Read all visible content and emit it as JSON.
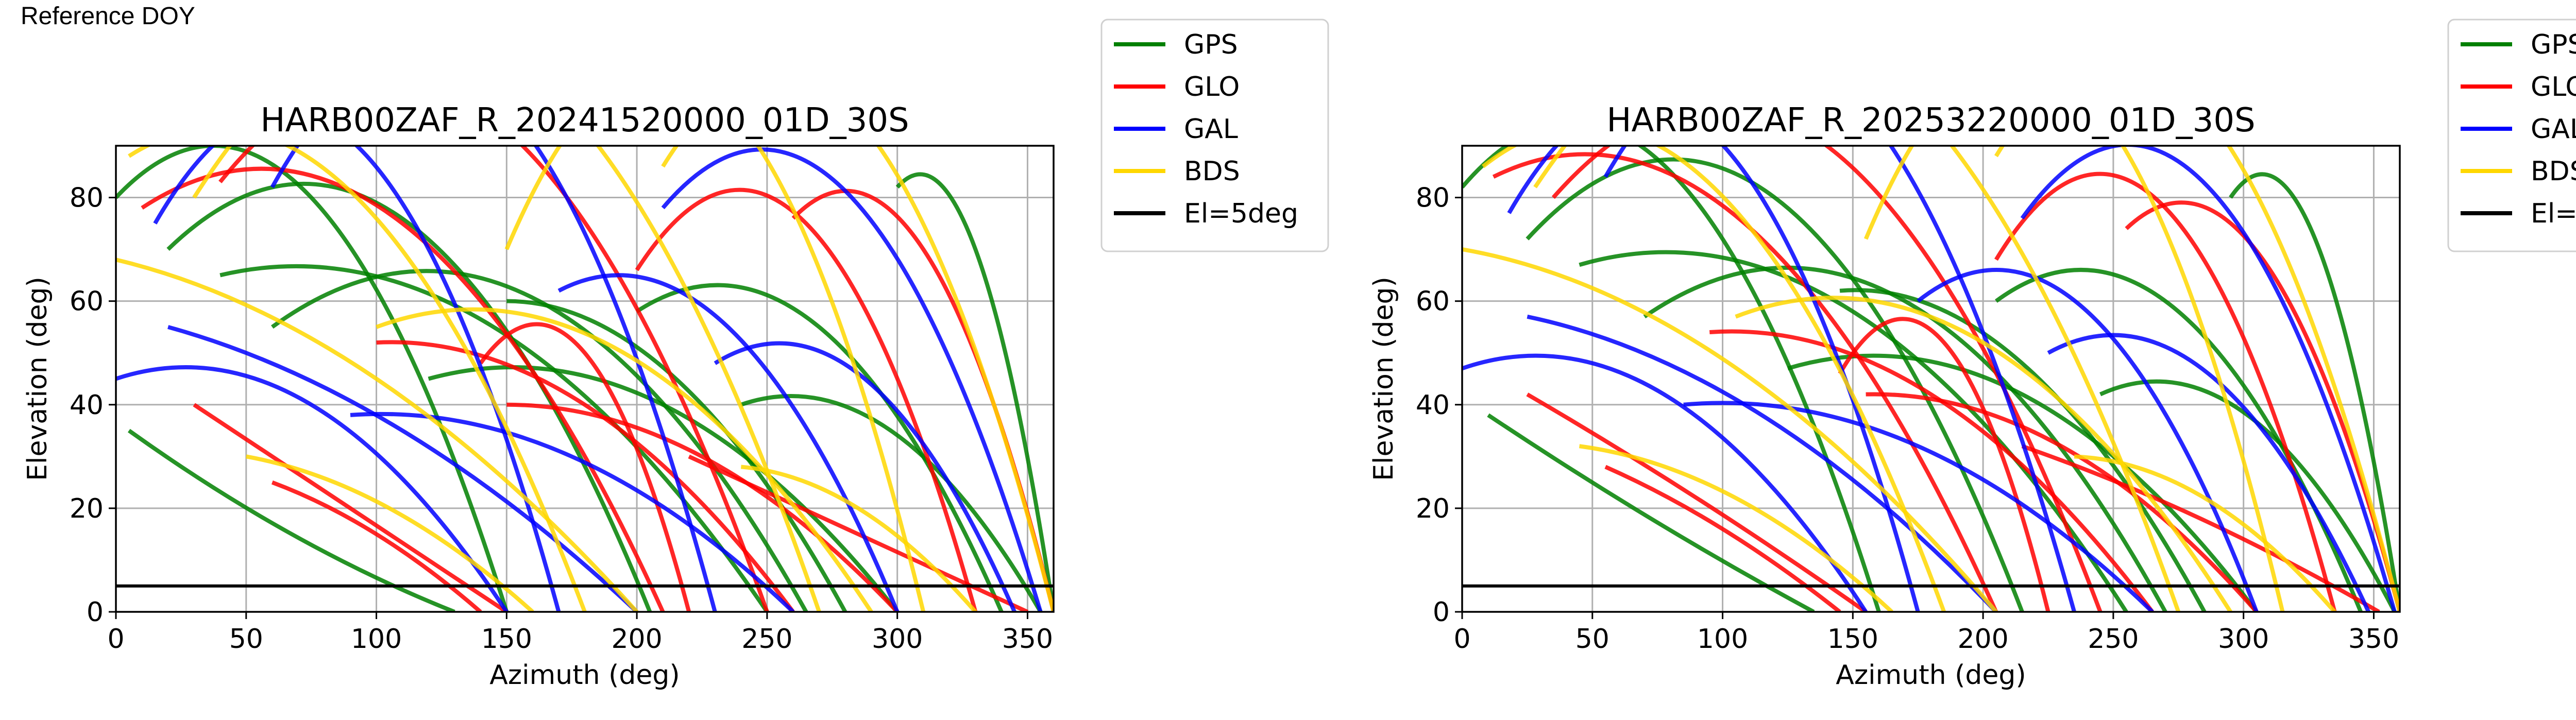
{
  "header": {
    "label": "Reference DOY"
  },
  "colors": {
    "GPS": "#008000",
    "GLO": "#ff0000",
    "GAL": "#0000ff",
    "BDS": "#ffd700",
    "El=5deg": "#000000"
  },
  "chart_data": [
    {
      "type": "line",
      "title": "HARB00ZAF_R_20241520000_01D_30S",
      "xlabel": "Azimuth (deg)",
      "ylabel": "Elevation (deg)",
      "xlim": [
        0,
        360
      ],
      "ylim": [
        0,
        90
      ],
      "xticks": [
        0,
        50,
        100,
        150,
        200,
        250,
        300,
        350
      ],
      "yticks": [
        0,
        20,
        40,
        60,
        80
      ],
      "grid": true,
      "legend": {
        "placement": "outside-right",
        "entries": [
          "GPS",
          "GLO",
          "GAL",
          "BDS",
          "El=5deg"
        ]
      },
      "reference_line": {
        "name": "El=5deg",
        "y": 5
      },
      "series": [
        {
          "name": "GPS",
          "arcs": [
            [
              0,
              80,
              80,
              150
            ],
            [
              20,
              70,
              75,
              205
            ],
            [
              60,
              55,
              60,
              265
            ],
            [
              120,
              45,
              40,
              300
            ],
            [
              200,
              58,
              55,
              340
            ],
            [
              300,
              82,
              70,
              360
            ],
            [
              5,
              35,
              15,
              130
            ],
            [
              240,
              40,
              35,
              355
            ],
            [
              150,
              60,
              45,
              280
            ],
            [
              40,
              65,
              55,
              250
            ]
          ]
        },
        {
          "name": "GLO",
          "arcs": [
            [
              10,
              78,
              75,
              210
            ],
            [
              40,
              83,
              95,
              250
            ],
            [
              140,
              48,
              50,
              220
            ],
            [
              200,
              66,
              75,
              330
            ],
            [
              260,
              76,
              70,
              360
            ],
            [
              30,
              40,
              20,
              150
            ],
            [
              220,
              30,
              15,
              350
            ],
            [
              100,
              52,
              40,
              260
            ],
            [
              60,
              25,
              15,
              140
            ],
            [
              150,
              40,
              30,
              300
            ]
          ]
        },
        {
          "name": "GAL",
          "arcs": [
            [
              15,
              75,
              90,
              170
            ],
            [
              60,
              82,
              100,
              230
            ],
            [
              170,
              62,
              55,
              300
            ],
            [
              210,
              78,
              80,
              355
            ],
            [
              0,
              45,
              40,
              150
            ],
            [
              230,
              48,
              45,
              345
            ],
            [
              90,
              38,
              30,
              260
            ],
            [
              20,
              55,
              35,
              200
            ]
          ]
        },
        {
          "name": "BDS",
          "arcs": [
            [
              5,
              88,
              80,
              180
            ],
            [
              30,
              80,
              110,
              270
            ],
            [
              150,
              70,
              100,
              310
            ],
            [
              210,
              86,
              95,
              360
            ],
            [
              50,
              30,
              20,
              160
            ],
            [
              240,
              28,
              20,
              330
            ],
            [
              100,
              55,
              50,
              290
            ],
            [
              0,
              68,
              45,
              200
            ]
          ]
        }
      ]
    },
    {
      "type": "line",
      "title": "HARB00ZAF_R_20253220000_01D_30S",
      "xlabel": "Azimuth (deg)",
      "ylabel": "Elevation (deg)",
      "xlim": [
        0,
        360
      ],
      "ylim": [
        0,
        90
      ],
      "xticks": [
        0,
        50,
        100,
        150,
        200,
        250,
        300,
        350
      ],
      "yticks": [
        0,
        20,
        40,
        60,
        80
      ],
      "grid": true,
      "legend": {
        "placement": "outside-right",
        "entries": [
          "GPS",
          "GLO",
          "GAL",
          "BDS",
          "El=5deg"
        ]
      },
      "reference_line": {
        "name": "El=5deg",
        "y": 5
      },
      "series": [
        {
          "name": "GPS",
          "arcs": [
            [
              0,
              82,
              85,
              160
            ],
            [
              25,
              72,
              80,
              215
            ],
            [
              70,
              57,
              60,
              270
            ],
            [
              125,
              47,
              42,
              305
            ],
            [
              205,
              60,
              58,
              345
            ],
            [
              295,
              80,
              72,
              360
            ],
            [
              10,
              38,
              18,
              135
            ],
            [
              245,
              42,
              38,
              358
            ],
            [
              145,
              62,
              48,
              285
            ],
            [
              45,
              67,
              58,
              255
            ]
          ]
        },
        {
          "name": "GLO",
          "arcs": [
            [
              12,
              84,
              75,
              205
            ],
            [
              35,
              80,
              90,
              245
            ],
            [
              145,
              46,
              52,
              225
            ],
            [
              205,
              68,
              78,
              335
            ],
            [
              255,
              74,
              68,
              360
            ],
            [
              25,
              42,
              22,
              155
            ],
            [
              215,
              32,
              18,
              352
            ],
            [
              95,
              54,
              42,
              265
            ],
            [
              55,
              28,
              16,
              145
            ],
            [
              155,
              42,
              32,
              305
            ]
          ]
        },
        {
          "name": "GAL",
          "arcs": [
            [
              18,
              77,
              92,
              175
            ],
            [
              55,
              84,
              102,
              235
            ],
            [
              175,
              60,
              58,
              305
            ],
            [
              215,
              76,
              82,
              358
            ],
            [
              0,
              47,
              42,
              155
            ],
            [
              225,
              50,
              46,
              348
            ],
            [
              85,
              40,
              32,
              265
            ],
            [
              25,
              57,
              38,
              205
            ]
          ]
        },
        {
          "name": "BDS",
          "arcs": [
            [
              8,
              86,
              82,
              185
            ],
            [
              28,
              82,
              112,
              275
            ],
            [
              155,
              72,
              102,
              315
            ],
            [
              205,
              88,
              98,
              360
            ],
            [
              45,
              32,
              22,
              165
            ],
            [
              235,
              30,
              22,
              335
            ],
            [
              105,
              57,
              52,
              295
            ],
            [
              0,
              70,
              48,
              205
            ]
          ]
        }
      ]
    }
  ]
}
